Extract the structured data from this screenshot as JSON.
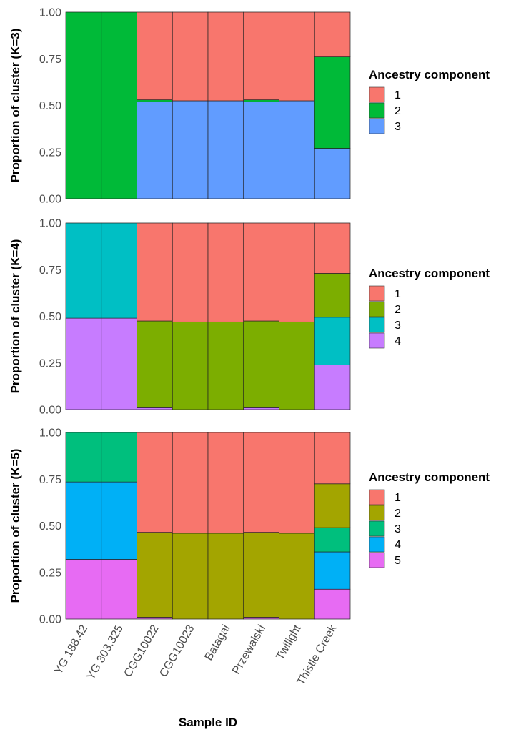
{
  "chart_data": {
    "type": "bar",
    "stacked": true,
    "xlabel": "Sample ID",
    "categories": [
      "YG 188.42",
      "YG 303.325",
      "CGG10022",
      "CGG10023",
      "Batagai",
      "Przewalski",
      "Twilight",
      "Thistle Creek"
    ],
    "yticks": [
      "0.00",
      "0.25",
      "0.50",
      "0.75",
      "1.00"
    ],
    "grid": true,
    "legend_placement": "right",
    "panels": [
      {
        "ylabel": "Proportion of cluster (K=3)",
        "ylim": [
          0,
          1
        ],
        "legend_title": "Ancestry component",
        "series": [
          {
            "name": "1",
            "color": "#F8766D",
            "values": [
              0,
              0,
              0.47,
              0.475,
              0.475,
              0.47,
              0.475,
              0.24
            ]
          },
          {
            "name": "2",
            "color": "#00BA38",
            "values": [
              1,
              1,
              0.01,
              0,
              0,
              0.01,
              0,
              0.49
            ]
          },
          {
            "name": "3",
            "color": "#619CFF",
            "values": [
              0,
              0,
              0.52,
              0.525,
              0.525,
              0.52,
              0.525,
              0.27
            ]
          }
        ]
      },
      {
        "ylabel": "Proportion of cluster (K=4)",
        "ylim": [
          0,
          1
        ],
        "legend_title": "Ancestry component",
        "series": [
          {
            "name": "1",
            "color": "#F8766D",
            "values": [
              0,
              0,
              0.525,
              0.53,
              0.53,
              0.525,
              0.53,
              0.27
            ]
          },
          {
            "name": "2",
            "color": "#7CAE00",
            "values": [
              0,
              0,
              0.465,
              0.47,
              0.47,
              0.465,
              0.47,
              0.235
            ]
          },
          {
            "name": "3",
            "color": "#00BFC4",
            "values": [
              0.51,
              0.51,
              0,
              0,
              0,
              0,
              0,
              0.255
            ]
          },
          {
            "name": "4",
            "color": "#C77CFF",
            "values": [
              0.49,
              0.49,
              0.01,
              0,
              0,
              0.01,
              0,
              0.24
            ]
          }
        ]
      },
      {
        "ylabel": "Proportion of cluster (K=5)",
        "ylim": [
          0,
          1
        ],
        "legend_title": "Ancestry component",
        "series": [
          {
            "name": "1",
            "color": "#F8766D",
            "values": [
              0,
              0,
              0.535,
              0.54,
              0.54,
              0.535,
              0.54,
              0.275
            ]
          },
          {
            "name": "2",
            "color": "#A3A500",
            "values": [
              0,
              0,
              0.455,
              0.46,
              0.46,
              0.455,
              0.46,
              0.235
            ]
          },
          {
            "name": "3",
            "color": "#00BF7D",
            "values": [
              0.265,
              0.265,
              0,
              0,
              0,
              0,
              0,
              0.13
            ]
          },
          {
            "name": "4",
            "color": "#00B0F6",
            "values": [
              0.415,
              0.415,
              0,
              0,
              0,
              0,
              0,
              0.2
            ]
          },
          {
            "name": "5",
            "color": "#E76BF3",
            "values": [
              0.32,
              0.32,
              0.01,
              0,
              0,
              0.01,
              0,
              0.16
            ]
          }
        ]
      }
    ]
  }
}
